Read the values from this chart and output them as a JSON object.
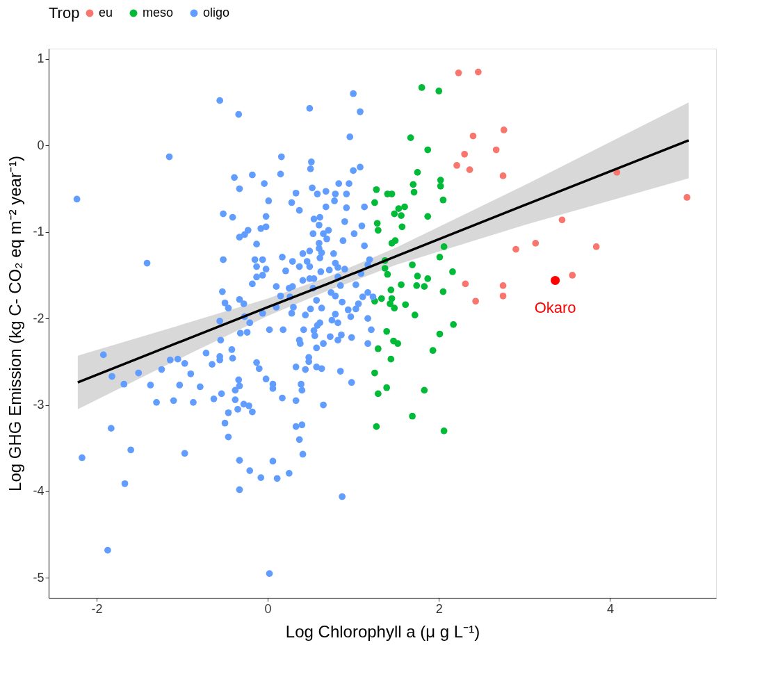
{
  "chart_data": {
    "type": "scatter",
    "xlabel": "Log Chlorophyll a (μ g L⁻¹)",
    "ylabel": "Log GHG Emission (kg C- CO₂ eq m⁻² year⁻¹)",
    "legend_title": "Trop",
    "legend": "top",
    "grid": false,
    "marker": "circle",
    "xlim": [
      -2.56,
      5.24
    ],
    "ylim": [
      -5.23,
      1.12
    ],
    "xticks": [
      -2,
      0,
      2,
      4
    ],
    "yticks": [
      -5,
      -4,
      -3,
      -2,
      -1,
      0,
      1
    ],
    "annotations": [
      {
        "text": "Okaro",
        "x": 3.36,
        "y": -1.56
      }
    ],
    "series": [
      {
        "name": "eu",
        "color": "#f8766d",
        "x": [
          2.23,
          2.46,
          2.4,
          2.76,
          2.3,
          2.21,
          2.36,
          2.67,
          2.75,
          4.08,
          4.9,
          3.44,
          2.9,
          3.13,
          3.84,
          3.56,
          2.31,
          2.75,
          2.43,
          2.75
        ],
        "values": [
          0.84,
          0.85,
          0.11,
          0.18,
          -0.1,
          -0.23,
          -0.28,
          -0.05,
          -0.35,
          -0.31,
          -0.6,
          -0.86,
          -1.2,
          -1.13,
          -1.17,
          -1.5,
          -1.6,
          -1.62,
          -1.8,
          -1.74
        ]
      },
      {
        "name": "meso",
        "color": "#00ba38",
        "x": [
          1.8,
          2.0,
          1.67,
          1.87,
          1.75,
          1.7,
          1.71,
          2.02,
          2.02,
          2.05,
          1.27,
          1.4,
          1.45,
          1.25,
          1.6,
          1.53,
          1.48,
          1.56,
          1.87,
          1.28,
          1.29,
          1.57,
          1.45,
          1.49,
          2.06,
          2.01,
          1.37,
          1.37,
          1.69,
          2.16,
          1.75,
          1.87,
          1.74,
          1.83,
          1.56,
          1.44,
          1.45,
          1.33,
          1.25,
          1.43,
          1.48,
          1.61,
          2.05,
          1.72,
          1.39,
          2.17,
          2.01,
          1.47,
          1.52,
          1.29,
          1.93,
          1.44,
          1.25,
          1.39,
          1.29,
          1.83,
          1.69,
          1.27,
          2.06,
          1.4
        ],
        "values": [
          0.67,
          0.63,
          0.09,
          -0.05,
          -0.31,
          -0.45,
          -0.54,
          -0.4,
          -0.47,
          -0.63,
          -0.51,
          -0.56,
          -0.56,
          -0.66,
          -0.71,
          -0.73,
          -0.79,
          -0.81,
          -0.82,
          -0.9,
          -0.98,
          -0.94,
          -1.13,
          -1.1,
          -1.17,
          -1.29,
          -1.33,
          -1.42,
          -1.38,
          -1.46,
          -1.51,
          -1.54,
          -1.62,
          -1.63,
          -1.61,
          -1.67,
          -1.77,
          -1.77,
          -1.8,
          -1.83,
          -1.88,
          -1.84,
          -1.69,
          -1.96,
          -2.15,
          -2.07,
          -2.18,
          -2.26,
          -2.29,
          -2.35,
          -2.37,
          -2.47,
          -2.63,
          -2.8,
          -2.87,
          -2.83,
          -3.13,
          -3.25,
          -3.3,
          -1.49
        ]
      },
      {
        "name": "oligo",
        "color": "#619cff",
        "x": [
          -0.56,
          -0.34,
          0.49,
          1.0,
          1.08,
          0.96,
          0.16,
          0.51,
          0.5,
          0.15,
          -0.39,
          -0.18,
          -0.04,
          -0.33,
          1.08,
          1.0,
          0.01,
          0.33,
          0.52,
          0.58,
          0.68,
          0.83,
          0.95,
          0.79,
          0.92,
          0.78,
          0.28,
          0.37,
          0.68,
          0.92,
          1.13,
          -0.52,
          -0.41,
          -0.02,
          0.54,
          0.61,
          0.6,
          0.9,
          1.1,
          -0.08,
          -0.02,
          -0.23,
          -0.33,
          -0.27,
          0.71,
          0.65,
          0.53,
          0.69,
          1.01,
          0.88,
          -0.13,
          1.13,
          0.6,
          0.6,
          0.63,
          0.49,
          0.41,
          0.77,
          -0.52,
          0.17,
          -0.15,
          -0.06,
          0.61,
          0.29,
          0.37,
          0.46,
          0.49,
          0.79,
          1.19,
          -0.13,
          -0.02,
          0.21,
          0.62,
          0.72,
          0.9,
          -0.13,
          -0.06,
          -0.18,
          0.1,
          0.25,
          0.29,
          0.41,
          0.49,
          0.54,
          0.82,
          0.82,
          0.85,
          1.03,
          1.09,
          1.17,
          -0.53,
          -0.33,
          -0.28,
          -0.5,
          -0.46,
          0.15,
          0.26,
          0.53,
          0.57,
          0.74,
          0.79,
          0.87,
          0.63,
          0.5,
          0.44,
          0.28,
          0.3,
          0.1,
          -0.06,
          1.11,
          1.17,
          1.23,
          1.06,
          1.03,
          0.94,
          0.97,
          1.17,
          1.21,
          1.17,
          0.98,
          0.79,
          0.75,
          0.82,
          0.61,
          0.58,
          0.54,
          0.55,
          0.73,
          0.86,
          0.82,
          0.65,
          0.57,
          0.42,
          0.37,
          0.38,
          0.18,
          0.02,
          -0.27,
          -0.21,
          -0.56,
          -0.32,
          -0.24,
          -0.55,
          -0.42,
          -0.72,
          -0.56,
          -0.56,
          -0.41,
          -0.65,
          -0.97,
          -0.9,
          -1.03,
          -0.79,
          -0.13,
          -0.1,
          -0.02,
          0.06,
          0.06,
          -0.34,
          -0.33,
          -0.38,
          -0.38,
          -0.54,
          -0.63,
          -0.87,
          -0.28,
          -0.22,
          -0.18,
          -0.35,
          -0.46,
          -0.5,
          -0.46,
          0.17,
          0.33,
          0.39,
          0.4,
          0.33,
          0.44,
          0.48,
          0.48,
          0.57,
          0.63,
          0.85,
          0.98,
          0.65,
          0.33,
          0.4,
          0.37,
          0.41,
          -0.97,
          -0.33,
          0.06,
          -0.21,
          -0.08,
          0.11,
          0.25,
          -0.33,
          -2.23,
          -1.15,
          -1.41,
          0.02,
          0.87,
          -1.87,
          -2.17,
          -1.83,
          -1.6,
          -1.67,
          -1.92,
          -1.82,
          -1.68,
          -1.51,
          -1.37,
          -1.24,
          -1.14,
          -1.05,
          -1.1,
          -1.3
        ],
        "values": [
          0.52,
          0.36,
          0.43,
          0.6,
          0.39,
          0.1,
          -0.13,
          -0.19,
          -0.27,
          -0.33,
          -0.37,
          -0.34,
          -0.44,
          -0.5,
          -0.25,
          -0.29,
          -0.64,
          -0.55,
          -0.49,
          -0.56,
          -0.53,
          -0.44,
          -0.44,
          -0.56,
          -0.56,
          -0.64,
          -0.66,
          -0.75,
          -0.71,
          -0.72,
          -0.71,
          -0.79,
          -0.83,
          -0.82,
          -0.85,
          -0.83,
          -0.92,
          -0.88,
          -0.93,
          -0.96,
          -0.94,
          -0.98,
          -1.06,
          -1.03,
          -0.98,
          -1.02,
          -1.02,
          -1.08,
          -1.02,
          -1.1,
          -1.14,
          -1.16,
          -1.13,
          -1.19,
          -1.24,
          -1.22,
          -1.25,
          -1.25,
          -1.32,
          -1.29,
          -1.32,
          -1.32,
          -1.3,
          -1.34,
          -1.4,
          -1.34,
          -1.4,
          -1.36,
          -1.32,
          -1.4,
          -1.43,
          -1.45,
          -1.46,
          -1.44,
          -1.43,
          -1.52,
          -1.5,
          -1.6,
          -1.63,
          -1.65,
          -1.63,
          -1.56,
          -1.54,
          -1.54,
          -1.41,
          -1.52,
          -1.62,
          -1.61,
          -1.48,
          -1.38,
          -1.69,
          -1.78,
          -1.83,
          -1.82,
          -1.88,
          -1.74,
          -1.75,
          -1.65,
          -1.79,
          -1.7,
          -1.74,
          -1.81,
          -1.88,
          -1.89,
          -1.96,
          -1.94,
          -1.87,
          -1.87,
          -1.94,
          -1.75,
          -1.7,
          -1.75,
          -1.83,
          -1.89,
          -1.9,
          -1.98,
          -2.0,
          -2.13,
          -2.29,
          -2.22,
          -1.95,
          -2.02,
          -2.05,
          -2.05,
          -2.08,
          -2.14,
          -2.2,
          -2.21,
          -2.19,
          -2.25,
          -2.29,
          -2.34,
          -2.13,
          -2.25,
          -2.29,
          -2.13,
          -2.13,
          -1.98,
          -2.05,
          -2.03,
          -2.17,
          -2.16,
          -2.25,
          -2.36,
          -2.4,
          -2.44,
          -2.48,
          -2.46,
          -2.53,
          -2.52,
          -2.64,
          -2.77,
          -2.79,
          -2.51,
          -2.58,
          -2.7,
          -2.76,
          -2.81,
          -2.71,
          -2.78,
          -2.83,
          -2.94,
          -2.87,
          -2.93,
          -2.97,
          -2.99,
          -3.01,
          -3.08,
          -3.05,
          -3.09,
          -3.21,
          -3.37,
          -2.92,
          -2.95,
          -2.76,
          -2.83,
          -2.56,
          -2.59,
          -2.45,
          -2.5,
          -2.56,
          -2.58,
          -2.61,
          -2.74,
          -3.0,
          -3.25,
          -3.23,
          -3.4,
          -3.57,
          -3.56,
          -3.64,
          -3.65,
          -3.76,
          -3.84,
          -3.85,
          -3.79,
          -3.98,
          -0.62,
          -0.13,
          -1.36,
          -4.95,
          -4.06,
          -4.68,
          -3.61,
          -3.27,
          -3.52,
          -3.91,
          -2.42,
          -2.67,
          -2.76,
          -2.63,
          -2.77,
          -2.59,
          -2.48,
          -2.47,
          -2.95,
          -2.97
        ]
      },
      {
        "color": "#ff0000",
        "x": [
          3.36
        ],
        "values": [
          -1.56
        ]
      },
      {
        "color": "#000000",
        "type": "line",
        "marker": "none",
        "x": [
          -2.22,
          -1,
          0,
          0.7,
          1.5,
          3,
          4.92
        ],
        "values": [
          -2.74,
          -2.26,
          -1.87,
          -1.6,
          -1.28,
          -0.69,
          0.06
        ],
        "lower": [
          -3.05,
          -2.45,
          -1.97,
          -1.68,
          -1.38,
          -0.92,
          -0.38
        ],
        "upper": [
          -2.43,
          -2.07,
          -1.77,
          -1.52,
          -1.18,
          -0.46,
          0.5
        ]
      }
    ]
  }
}
